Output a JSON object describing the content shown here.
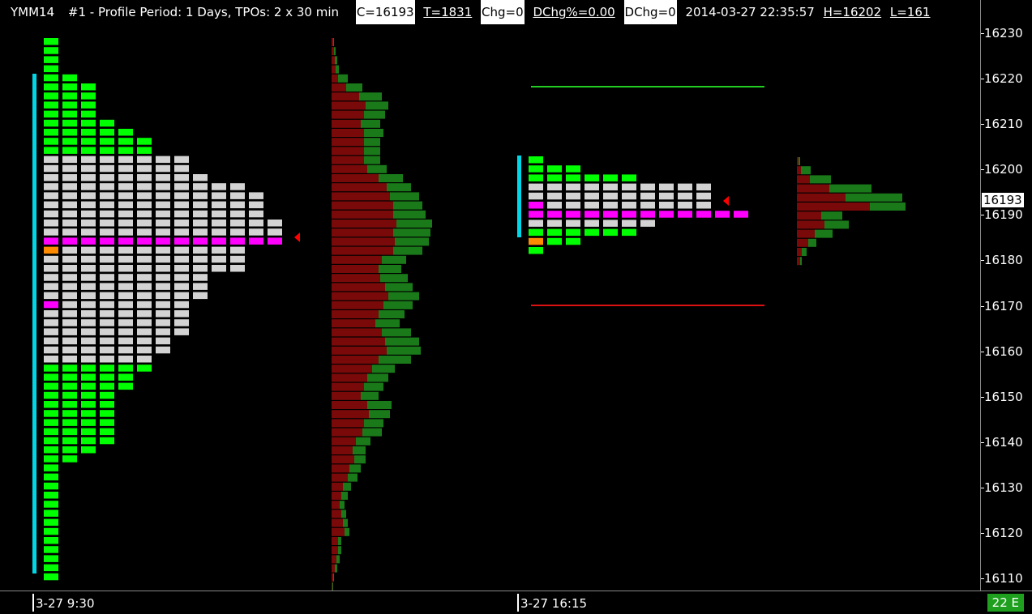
{
  "header": {
    "symbol": "YMM14",
    "description": "#1 - Profile Period: 1 Days, TPOs: 2 x 30 min",
    "close": "C=16193",
    "trades": "T=1831",
    "change": "Chg=0",
    "dchg_pct": "DChg%=0.00",
    "dchg": "DChg=0",
    "datetime": "2014-03-27 22:35:57",
    "high": "H=16202",
    "low": "L=161"
  },
  "y_axis": {
    "ticks": [
      "16230",
      "16220",
      "16210",
      "16200",
      "16190",
      "16180",
      "16170",
      "16160",
      "16150",
      "16140",
      "16130",
      "16120",
      "16110"
    ],
    "current_price": "16193"
  },
  "x_axis": {
    "labels": [
      "3-27  9:30",
      "3-27  16:15"
    ]
  },
  "status": {
    "badge": "22 E"
  },
  "colors": {
    "tpo_green": "#00ff00",
    "tpo_gray": "#d3d3d3",
    "poc_magenta": "#ff00ff",
    "open_orange": "#ff8c00",
    "value_area_bar": "#00d7e6",
    "bid_volume": "#7a0a0a",
    "ask_volume": "#1a7a1a",
    "high_line": "#22cc22",
    "low_line": "#dd1111",
    "poc_marker": "#ff0000"
  }
}
